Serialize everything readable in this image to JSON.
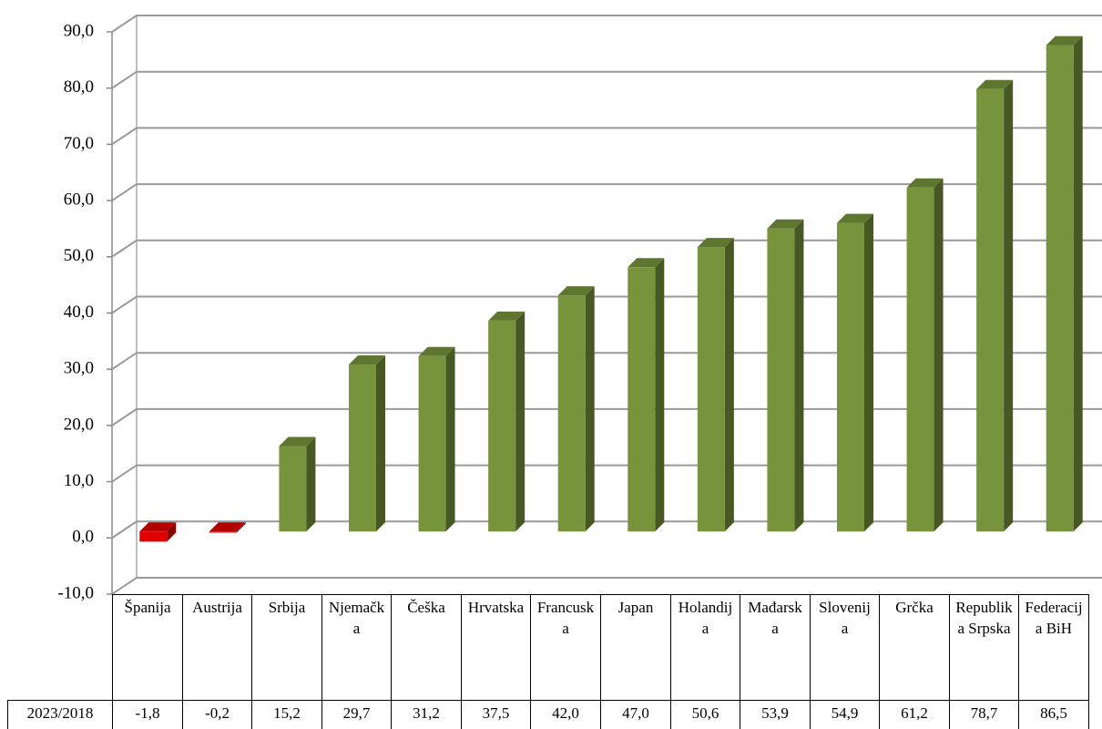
{
  "chart_data": {
    "type": "bar3d",
    "categories": [
      "Španija",
      "Austrija",
      "Srbija",
      "Njemačka",
      "Češka",
      "Hrvatska",
      "Francuska",
      "Japan",
      "Holandija",
      "Mađarska",
      "Slovenija",
      "Grčka",
      "Republika Srpska",
      "Federacija BiH"
    ],
    "series": [
      {
        "name": "2023/2018",
        "color": "#77933c",
        "negative_color": "#e00000",
        "values": [
          -1.8,
          -0.2,
          15.2,
          29.7,
          31.2,
          37.5,
          42.0,
          47.0,
          50.6,
          53.9,
          54.9,
          61.2,
          78.7,
          86.5
        ],
        "value_labels": [
          "-1,8",
          "-0,2",
          "15,2",
          "29,7",
          "31,2",
          "37,5",
          "42,0",
          "47,0",
          "50,6",
          "53,9",
          "54,9",
          "61,2",
          "78,7",
          "86,5"
        ]
      }
    ],
    "ylim": [
      -10,
      90
    ],
    "yticks": [
      {
        "value": -10,
        "label": "-10,0"
      },
      {
        "value": 0,
        "label": "0,0"
      },
      {
        "value": 10,
        "label": "10,0"
      },
      {
        "value": 20,
        "label": "20,0"
      },
      {
        "value": 30,
        "label": "30,0"
      },
      {
        "value": 40,
        "label": "40,0"
      },
      {
        "value": 50,
        "label": "50,0"
      },
      {
        "value": 60,
        "label": "60,0"
      },
      {
        "value": 70,
        "label": "70,0"
      },
      {
        "value": 80,
        "label": "80,0"
      },
      {
        "value": 90,
        "label": "90,0"
      }
    ],
    "grid": true
  }
}
